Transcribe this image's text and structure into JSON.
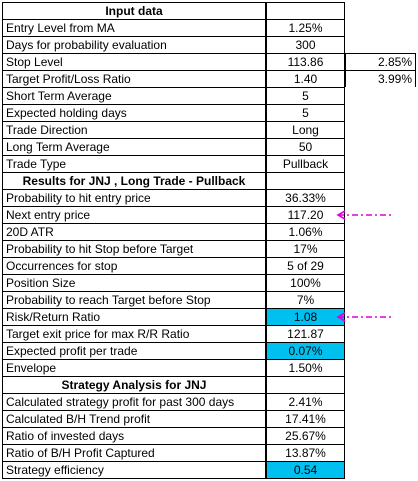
{
  "section_input": "Input data",
  "input_rows": [
    {
      "label": "Entry Level from MA",
      "value": "1.25%",
      "extra": ""
    },
    {
      "label": "Days for probability evaluation",
      "value": "300",
      "extra": ""
    },
    {
      "label": "Stop Level",
      "value": "113.86",
      "extra": "2.85%"
    },
    {
      "label": "Target Profit/Loss Ratio",
      "value": "1.40",
      "extra": "3.99%"
    },
    {
      "label": "Short Term Average",
      "value": "5",
      "extra": ""
    },
    {
      "label": "Expected holding days",
      "value": "5",
      "extra": ""
    },
    {
      "label": "Trade Direction",
      "value": "Long",
      "extra": ""
    },
    {
      "label": "Long Term Average",
      "value": "50",
      "extra": ""
    },
    {
      "label": "Trade Type",
      "value": "Pullback",
      "extra": ""
    }
  ],
  "section_results": "Results for JNJ , Long Trade - Pullback",
  "result_rows": [
    {
      "label": "Probability to hit entry price",
      "value": "36.33%"
    },
    {
      "label": "Next entry price",
      "value": "117.20"
    },
    {
      "label": "20D ATR",
      "value": "1.06%"
    },
    {
      "label": "Probability to hit Stop before Target",
      "value": "17%"
    },
    {
      "label": "Occurrences for stop",
      "value": "5 of 29"
    },
    {
      "label": "Position Size",
      "value": "100%"
    },
    {
      "label": "Probability to reach Target before Stop",
      "value": "7%"
    },
    {
      "label": "Risk/Return Ratio",
      "value": "1.08"
    },
    {
      "label": "Target exit price for max R/R Ratio",
      "value": "121.87"
    },
    {
      "label": "Expected profit per trade",
      "value": "0.07%"
    },
    {
      "label": "Envelope",
      "value": "1.50%"
    }
  ],
  "section_strategy": "Strategy Analysis for JNJ",
  "strategy_rows": [
    {
      "label": "Calculated strategy profit for past 300 days",
      "value": "2.41%"
    },
    {
      "label": "Calculated B/H Trend profit",
      "value": "17.41%"
    },
    {
      "label": "Ratio of invested days",
      "value": "25.67%"
    },
    {
      "label": "Ratio of B/H Profit Captured",
      "value": "13.87%"
    },
    {
      "label": "Strategy efficiency",
      "value": "0.54"
    }
  ],
  "colors": {
    "highlight": "#00c0f0",
    "arrow": "#e000e0"
  },
  "icons": [
    "dash-dot-arrow-icon"
  ]
}
